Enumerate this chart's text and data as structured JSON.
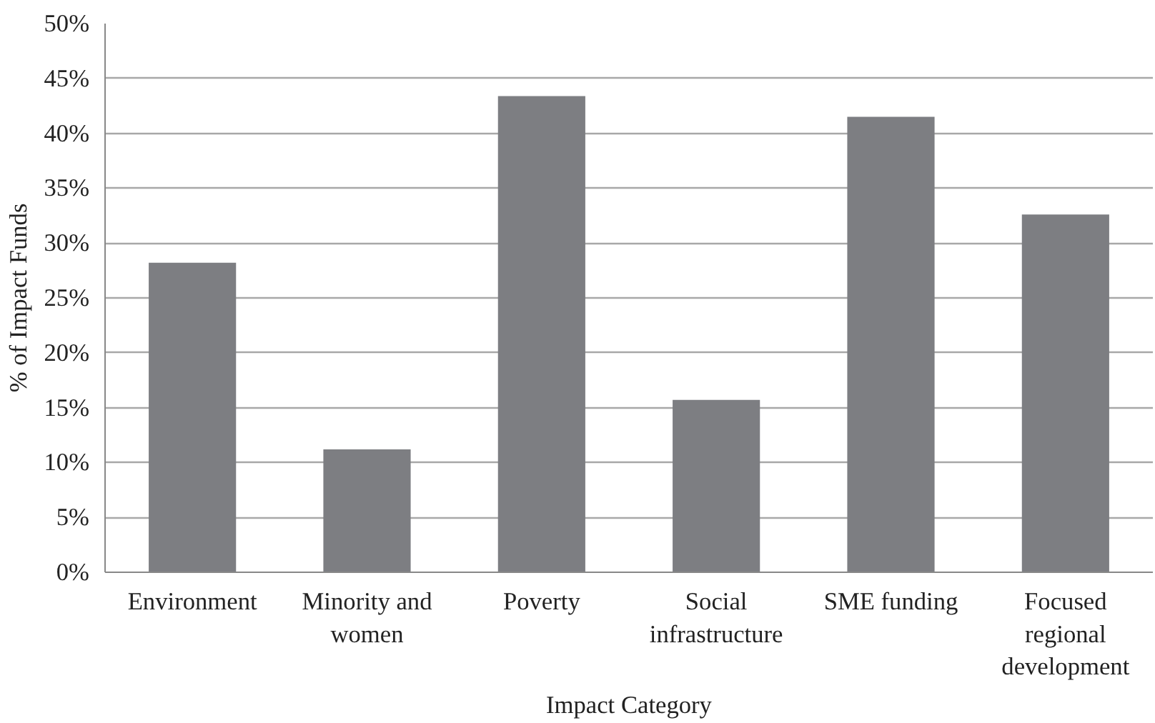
{
  "chart_data": {
    "type": "bar",
    "xlabel": "Impact Category",
    "ylabel": "% of Impact Funds",
    "categories": [
      "Environment",
      "Minority and\nwomen",
      "Poverty",
      "Social\ninfrastructure",
      "SME funding",
      "Focused\nregional\ndevelopment"
    ],
    "values": [
      28.2,
      11.2,
      43.4,
      15.7,
      41.5,
      32.6
    ],
    "color": "#7d7e82",
    "ylim": [
      0,
      50
    ],
    "yticks": [
      {
        "value": 0,
        "label": "0%"
      },
      {
        "value": 5,
        "label": "5%"
      },
      {
        "value": 10,
        "label": "10%"
      },
      {
        "value": 15,
        "label": "15%"
      },
      {
        "value": 20,
        "label": "20%"
      },
      {
        "value": 25,
        "label": "25%"
      },
      {
        "value": 30,
        "label": "30%"
      },
      {
        "value": 35,
        "label": "35%"
      },
      {
        "value": 40,
        "label": "40%"
      },
      {
        "value": 45,
        "label": "45%"
      },
      {
        "value": 50,
        "label": "50%"
      }
    ],
    "grid": "y"
  }
}
